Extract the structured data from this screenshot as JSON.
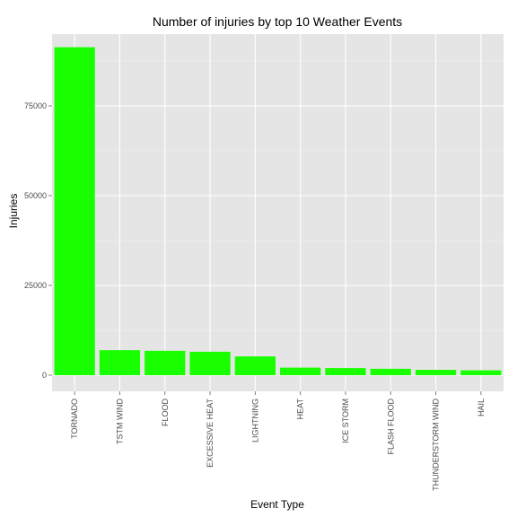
{
  "chart_data": {
    "type": "bar",
    "title": "Number of injuries by top 10 Weather Events",
    "xlabel": "Event Type",
    "ylabel": "Injuries",
    "categories": [
      "TORNADO",
      "TSTM WIND",
      "FLOOD",
      "EXCESSIVE HEAT",
      "LIGHTNING",
      "HEAT",
      "ICE STORM",
      "FLASH FLOOD",
      "THUNDERSTORM WIND",
      "HAIL"
    ],
    "values": [
      91346,
      6957,
      6789,
      6525,
      5230,
      2100,
      1975,
      1777,
      1488,
      1361
    ],
    "ylim": [
      0,
      96000
    ],
    "yticks": [
      0,
      25000,
      50000,
      75000
    ],
    "grid": true,
    "colors": {
      "bar": "#1aff00",
      "panel": "#e5e5e5",
      "grid_major": "#ffffff",
      "grid_minor": "#f2f2f2",
      "tick_text": "#4d4d4d",
      "axis_tick": "#7f7f7f"
    }
  }
}
